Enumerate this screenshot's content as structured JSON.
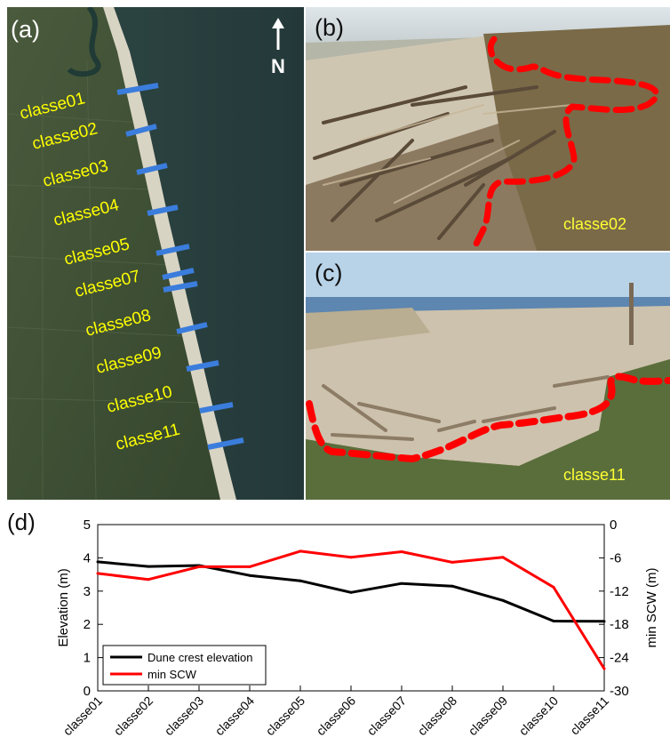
{
  "panels": {
    "a": {
      "label": "(a)",
      "north_label": "N",
      "class_labels": [
        "classe01",
        "classe02",
        "classe03",
        "classe04",
        "classe05",
        "classe07",
        "classe08",
        "classe09",
        "classe10",
        "classe11"
      ],
      "colors": {
        "label": "#ffff00",
        "transect": "#3b7ddd"
      }
    },
    "b": {
      "label": "(b)",
      "photo_caption": "classe02",
      "colors": {
        "outline": "#ff0000",
        "caption": "#ffff33"
      }
    },
    "c": {
      "label": "(c)",
      "photo_caption": "classe11",
      "colors": {
        "outline": "#ff0000",
        "caption": "#ffff33"
      }
    }
  },
  "chart_panel_label": "(d)",
  "chart_data": {
    "type": "line",
    "categories": [
      "classe01",
      "classe02",
      "classe03",
      "classe04",
      "classe05",
      "classe06",
      "classe07",
      "classe08",
      "classe09",
      "classe10",
      "classe11"
    ],
    "ylabel": "Elevation (m)",
    "y2label": "min SCW (m)",
    "ylim": [
      0,
      5
    ],
    "y2lim": [
      -30,
      0
    ],
    "yticks": [
      "0",
      "1",
      "2",
      "3",
      "4",
      "5"
    ],
    "y2ticks": [
      "0",
      "-6",
      "-12",
      "-18",
      "-24",
      "-30"
    ],
    "legend_position": "bottom-left",
    "grid": false,
    "series": [
      {
        "name": "Dune crest elevation",
        "axis": "left",
        "color": "#000000",
        "values": [
          3.88,
          3.74,
          3.77,
          3.47,
          3.31,
          2.96,
          3.23,
          3.15,
          2.72,
          2.1,
          2.09
        ]
      },
      {
        "name": "min SCW",
        "axis": "right",
        "color": "#ff0000",
        "values": [
          -8.8,
          -9.9,
          -7.6,
          -7.6,
          -4.8,
          -5.9,
          -4.9,
          -6.8,
          -5.9,
          -11.3,
          -26.0
        ]
      }
    ]
  }
}
